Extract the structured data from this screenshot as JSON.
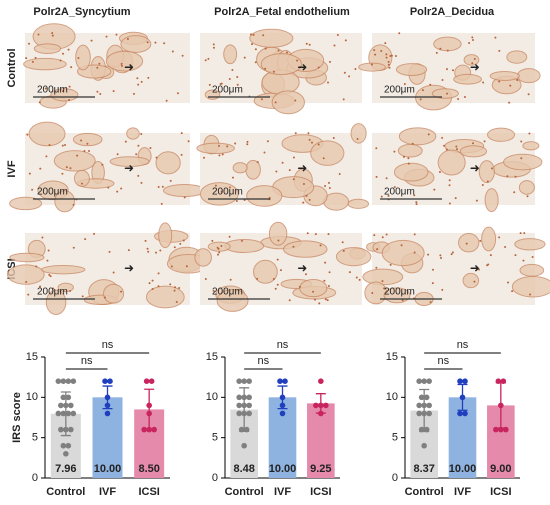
{
  "panel_titles": [
    "Polr2A_Syncytium",
    "Polr2A_Fetal endothelium",
    "Polr2A_Decidua"
  ],
  "row_labels": [
    "Control",
    "IVF",
    "ICSI"
  ],
  "scale_bar": "200μm",
  "chart_data": [
    {
      "type": "bar",
      "ylabel": "IRS score",
      "categories": [
        "Control",
        "IVF",
        "ICSI"
      ],
      "values": [
        7.96,
        10,
        8.5
      ],
      "value_labels": [
        "7.96",
        "10.00",
        "8.50"
      ],
      "errors": [
        2.7,
        1.4,
        2.5
      ],
      "colors": [
        "#d9d9d9",
        "#8fb3e0",
        "#e58aab"
      ],
      "point_colors": [
        "#808080",
        "#1f3fbf",
        "#c8255e"
      ],
      "points": [
        [
          3,
          4,
          4,
          6,
          6,
          6,
          8,
          8,
          8,
          8,
          9,
          9,
          9,
          10,
          10,
          12,
          12,
          12,
          12
        ],
        [
          12,
          12,
          10,
          9,
          8
        ],
        [
          12,
          12,
          9,
          8,
          6,
          6,
          6
        ]
      ],
      "ylim": [
        0,
        15
      ],
      "yticks": [
        0,
        5,
        10,
        15
      ],
      "annotations": [
        "ns",
        "ns"
      ]
    },
    {
      "type": "bar",
      "categories": [
        "Control",
        "IVF",
        "ICSI"
      ],
      "values": [
        8.48,
        10,
        9.25
      ],
      "value_labels": [
        "8.48",
        "10.00",
        "9.25"
      ],
      "errors": [
        2.7,
        1.4,
        1.2
      ],
      "colors": [
        "#d9d9d9",
        "#8fb3e0",
        "#e58aab"
      ],
      "point_colors": [
        "#808080",
        "#1f3fbf",
        "#c8255e"
      ],
      "points": [
        [
          4,
          6,
          6,
          8,
          8,
          8,
          9,
          9,
          9,
          10,
          10,
          10,
          12,
          12,
          12
        ],
        [
          12,
          12,
          10,
          9,
          8
        ],
        [
          12,
          9,
          9,
          9,
          8
        ]
      ],
      "ylim": [
        0,
        15
      ],
      "yticks": [
        0,
        5,
        10,
        15
      ],
      "annotations": [
        "ns",
        "ns"
      ]
    },
    {
      "type": "bar",
      "categories": [
        "Control",
        "IVF",
        "ICSI"
      ],
      "values": [
        8.37,
        10,
        9
      ],
      "value_labels": [
        "8.37",
        "10.00",
        "9.00"
      ],
      "errors": [
        2.6,
        1.6,
        2.8
      ],
      "colors": [
        "#d9d9d9",
        "#8fb3e0",
        "#e58aab"
      ],
      "point_colors": [
        "#808080",
        "#1f3fbf",
        "#c8255e"
      ],
      "points": [
        [
          4,
          6,
          6,
          8,
          8,
          8,
          9,
          9,
          9,
          10,
          10,
          12,
          12,
          12
        ],
        [
          12,
          12,
          10,
          8,
          8
        ],
        [
          12,
          12,
          9,
          6,
          6,
          6
        ]
      ],
      "ylim": [
        0,
        15
      ],
      "yticks": [
        0,
        5,
        10,
        15
      ],
      "annotations": [
        "ns",
        "ns"
      ]
    }
  ]
}
